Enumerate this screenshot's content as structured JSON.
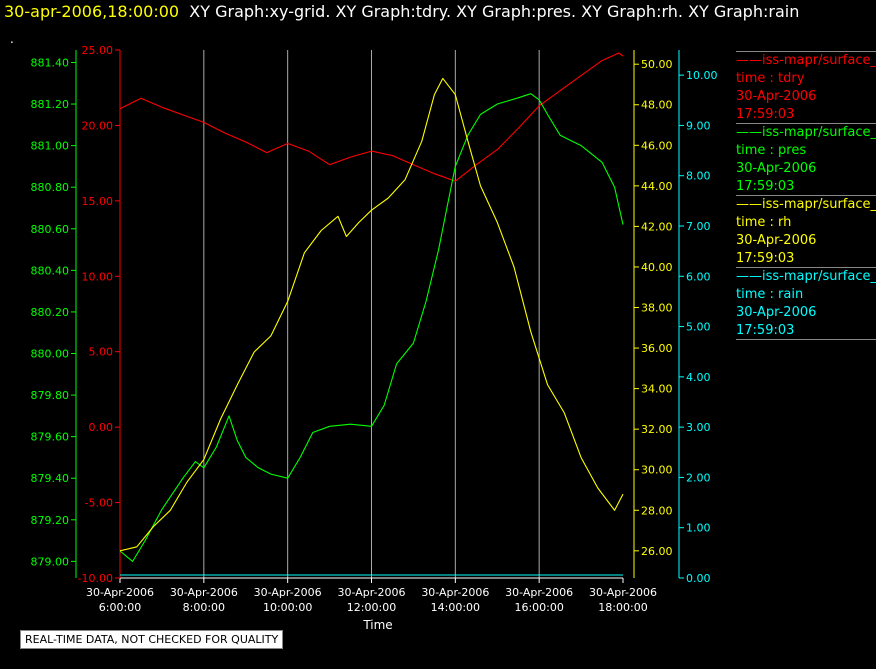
{
  "header": {
    "timestamp": "30-apr-2006,18:00:00",
    "graphs": "XY Graph:xy-grid.  XY Graph:tdry.  XY Graph:pres.  XY Graph:rh.  XY Graph:rain"
  },
  "dot": ".",
  "footer_note": "REAL-TIME DATA, NOT CHECKED FOR QUALITY",
  "colors": {
    "tdry": "#ff0000",
    "pres": "#00ff00",
    "rh": "#ffff00",
    "rain": "#00ffff",
    "grid": "#aaaaaa"
  },
  "legend": [
    {
      "name": "iss-mapr/surface_",
      "prefix": "——",
      "field": "time : tdry",
      "date": "30-Apr-2006",
      "time": "17:59:03",
      "color": "#ff0000"
    },
    {
      "name": "iss-mapr/surface_",
      "prefix": "——",
      "field": "time : pres",
      "date": "30-Apr-2006",
      "time": "17:59:03",
      "color": "#00ff00"
    },
    {
      "name": "iss-mapr/surface_",
      "prefix": "——",
      "field": "time : rh",
      "date": "30-Apr-2006",
      "time": "17:59:03",
      "color": "#ffff00"
    },
    {
      "name": "iss-mapr/surface_",
      "prefix": "——",
      "field": "time : rain",
      "date": "30-Apr-2006",
      "time": "17:59:03",
      "color": "#00ffff"
    }
  ],
  "chart_data": {
    "type": "line",
    "xlabel": "Time",
    "x_ticks": [
      {
        "date": "30-Apr-2006",
        "time": "6:00:00",
        "hour": 6
      },
      {
        "date": "30-Apr-2006",
        "time": "8:00:00",
        "hour": 8
      },
      {
        "date": "30-Apr-2006",
        "time": "10:00:00",
        "hour": 10
      },
      {
        "date": "30-Apr-2006",
        "time": "12:00:00",
        "hour": 12
      },
      {
        "date": "30-Apr-2006",
        "time": "14:00:00",
        "hour": 14
      },
      {
        "date": "30-Apr-2006",
        "time": "16:00:00",
        "hour": 16
      },
      {
        "date": "30-Apr-2006",
        "time": "18:00:00",
        "hour": 18
      }
    ],
    "xlim": [
      6,
      18
    ],
    "grid": "vertical",
    "axes": {
      "pres": {
        "ylim": [
          878.92,
          881.46
        ],
        "ticks": [
          "879.00",
          "879.20",
          "879.40",
          "879.60",
          "879.80",
          "880.00",
          "880.20",
          "880.40",
          "880.60",
          "880.80",
          "881.00",
          "881.20",
          "881.40"
        ]
      },
      "tdry": {
        "ylim": [
          -10,
          25
        ],
        "ticks": [
          "-10.00",
          "-5.00",
          "0.00",
          "5.00",
          "10.00",
          "15.00",
          "20.00",
          "25.00"
        ]
      },
      "rh": {
        "ylim": [
          24.66,
          50.7
        ],
        "ticks": [
          "26.00",
          "28.00",
          "30.00",
          "32.00",
          "34.00",
          "36.00",
          "38.00",
          "40.00",
          "42.00",
          "44.00",
          "46.00",
          "48.00",
          "50.00"
        ]
      },
      "rain": {
        "ylim": [
          0,
          10.5
        ],
        "ticks": [
          "0.00",
          "1.00",
          "2.00",
          "3.00",
          "4.00",
          "5.00",
          "6.00",
          "7.00",
          "8.00",
          "9.00",
          "10.00"
        ]
      }
    },
    "series": [
      {
        "name": "time : tdry",
        "axis": "tdry",
        "x": [
          6.0,
          6.5,
          7.0,
          7.5,
          8.0,
          8.5,
          9.0,
          9.5,
          10.0,
          10.5,
          11.0,
          11.5,
          12.0,
          12.5,
          13.0,
          13.5,
          14.0,
          14.5,
          15.0,
          15.5,
          16.0,
          16.5,
          17.0,
          17.5,
          17.9,
          18.0
        ],
        "y": [
          21.1,
          21.8,
          21.2,
          20.7,
          20.2,
          19.5,
          18.9,
          18.2,
          18.8,
          18.3,
          17.4,
          17.9,
          18.3,
          18.0,
          17.4,
          16.8,
          16.3,
          17.4,
          18.4,
          19.8,
          21.3,
          22.3,
          23.3,
          24.3,
          24.8,
          24.6
        ]
      },
      {
        "name": "time : pres",
        "axis": "pres",
        "x": [
          6.0,
          6.3,
          6.6,
          7.0,
          7.5,
          7.8,
          8.0,
          8.3,
          8.6,
          8.8,
          9.0,
          9.3,
          9.6,
          10.0,
          10.3,
          10.6,
          11.0,
          11.5,
          12.0,
          12.3,
          12.6,
          13.0,
          13.3,
          13.6,
          13.8,
          14.0,
          14.3,
          14.6,
          15.0,
          15.5,
          15.8,
          16.0,
          16.2,
          16.5,
          17.0,
          17.5,
          17.8,
          18.0
        ],
        "y": [
          879.05,
          879.0,
          879.1,
          879.25,
          879.4,
          879.48,
          879.45,
          879.55,
          879.7,
          879.58,
          879.5,
          879.45,
          879.42,
          879.4,
          879.5,
          879.62,
          879.65,
          879.66,
          879.65,
          879.75,
          879.95,
          880.05,
          880.25,
          880.5,
          880.7,
          880.9,
          881.05,
          881.15,
          881.2,
          881.23,
          881.25,
          881.22,
          881.15,
          881.05,
          881.0,
          880.92,
          880.8,
          880.62
        ]
      },
      {
        "name": "time : rh",
        "axis": "rh",
        "x": [
          6.0,
          6.4,
          6.8,
          7.2,
          7.6,
          8.0,
          8.4,
          8.8,
          9.2,
          9.6,
          10.0,
          10.4,
          10.8,
          11.2,
          11.4,
          11.7,
          12.0,
          12.4,
          12.8,
          13.2,
          13.5,
          13.7,
          14.0,
          14.3,
          14.6,
          15.0,
          15.4,
          15.8,
          16.2,
          16.6,
          17.0,
          17.4,
          17.8,
          18.0
        ],
        "y": [
          26.0,
          26.2,
          27.2,
          28.0,
          29.4,
          30.5,
          32.5,
          34.2,
          35.8,
          36.6,
          38.3,
          40.7,
          41.8,
          42.5,
          41.5,
          42.2,
          42.8,
          43.4,
          44.3,
          46.2,
          48.5,
          49.3,
          48.5,
          46.2,
          44.0,
          42.2,
          40.0,
          36.8,
          34.2,
          32.8,
          30.6,
          29.1,
          28.0,
          28.8
        ]
      },
      {
        "name": "time : rain",
        "axis": "rain",
        "x": [
          6.0,
          18.0
        ],
        "y": [
          0.0,
          0.0
        ]
      }
    ]
  }
}
